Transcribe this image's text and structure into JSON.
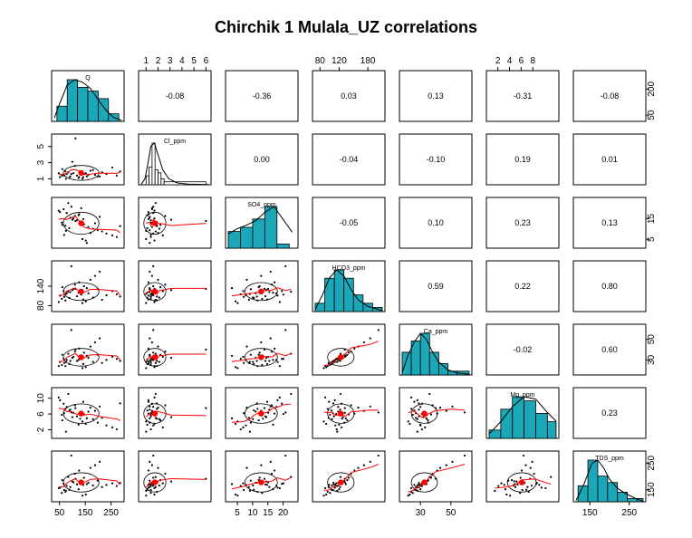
{
  "chart_data": {
    "type": "scatter",
    "title": "Chirchik 1 Mulala_UZ correlations",
    "variables": [
      "Q",
      "Cl_ppm",
      "SO4_ppm",
      "HCO3_ppm",
      "Ca_ppm",
      "Mg_ppm",
      "TDS_ppm"
    ],
    "ranges": [
      [
        30,
        290
      ],
      [
        0.6,
        6.2
      ],
      [
        2,
        24
      ],
      [
        70,
        210
      ],
      [
        18,
        62
      ],
      [
        0.5,
        12
      ],
      [
        115,
        285
      ]
    ],
    "top_axis": {
      "1": {
        "ticks": [
          "1",
          "2",
          "3",
          "4",
          "5",
          "6"
        ],
        "values": [
          1,
          2,
          3,
          4,
          5,
          6
        ]
      },
      "3": {
        "ticks": [
          "80",
          "120",
          "180"
        ],
        "values": [
          80,
          120,
          180
        ]
      },
      "5": {
        "ticks": [
          "2",
          "4",
          "6",
          "8"
        ],
        "values": [
          2,
          4,
          6,
          8
        ]
      }
    },
    "bottom_axis": {
      "0": {
        "ticks": [
          "50",
          "150",
          "250"
        ],
        "values": [
          50,
          150,
          250
        ]
      },
      "2": {
        "ticks": [
          "5",
          "10",
          "15",
          "20"
        ],
        "values": [
          5,
          10,
          15,
          20
        ]
      },
      "4": {
        "ticks": [
          "30",
          "50"
        ],
        "values": [
          30,
          50
        ]
      },
      "6": {
        "ticks": [
          "150",
          "250"
        ],
        "values": [
          150,
          250
        ]
      }
    },
    "left_axis": {
      "1": {
        "ticks": [
          "1",
          "3",
          "5"
        ],
        "values": [
          1,
          3,
          5
        ]
      },
      "3": {
        "ticks": [
          "80",
          "140"
        ],
        "values": [
          80,
          140
        ]
      },
      "5": {
        "ticks": [
          "2",
          "6",
          "10"
        ],
        "values": [
          2,
          6,
          10
        ]
      }
    },
    "right_axis": {
      "0": {
        "ticks": [
          "50",
          "200"
        ],
        "values": [
          50,
          200
        ]
      },
      "2": {
        "ticks": [
          "5",
          "15"
        ],
        "values": [
          5,
          15
        ]
      },
      "4": {
        "ticks": [
          "30",
          "50"
        ],
        "values": [
          30,
          50
        ]
      },
      "6": {
        "ticks": [
          "150",
          "250"
        ],
        "values": [
          150,
          250
        ]
      }
    },
    "correlations": [
      {
        "row": 0,
        "col": 1,
        "label": "-0.08"
      },
      {
        "row": 0,
        "col": 2,
        "label": "-0.36"
      },
      {
        "row": 0,
        "col": 3,
        "label": "0.03"
      },
      {
        "row": 0,
        "col": 4,
        "label": "0.13"
      },
      {
        "row": 0,
        "col": 5,
        "label": "-0.31"
      },
      {
        "row": 0,
        "col": 6,
        "label": "-0.08"
      },
      {
        "row": 1,
        "col": 2,
        "label": "0.00"
      },
      {
        "row": 1,
        "col": 3,
        "label": "-0.04"
      },
      {
        "row": 1,
        "col": 4,
        "label": "-0.10"
      },
      {
        "row": 1,
        "col": 5,
        "label": "0.19"
      },
      {
        "row": 1,
        "col": 6,
        "label": "0.01"
      },
      {
        "row": 2,
        "col": 3,
        "label": "-0.05"
      },
      {
        "row": 2,
        "col": 4,
        "label": "0.10"
      },
      {
        "row": 2,
        "col": 5,
        "label": "0.23"
      },
      {
        "row": 2,
        "col": 6,
        "label": "0.13"
      },
      {
        "row": 3,
        "col": 4,
        "label": "0.59"
      },
      {
        "row": 3,
        "col": 5,
        "label": "0.22"
      },
      {
        "row": 3,
        "col": 6,
        "label": "0.80"
      },
      {
        "row": 4,
        "col": 5,
        "label": "-0.02"
      },
      {
        "row": 4,
        "col": 6,
        "label": "0.60"
      },
      {
        "row": 5,
        "col": 6,
        "label": "0.23"
      }
    ],
    "histograms": [
      {
        "bins": [
          40,
          80,
          120,
          160,
          200,
          240,
          280
        ],
        "counts": [
          4,
          11,
          9,
          8,
          6,
          2
        ],
        "density_x": [
          30,
          50,
          80,
          110,
          140,
          170,
          200,
          230,
          260,
          290
        ],
        "density_y": [
          0.8,
          4,
          8.4,
          9.6,
          9.0,
          7.6,
          5.0,
          2.6,
          0.9,
          0.3
        ]
      },
      {
        "bins": [
          1,
          1.25,
          1.5,
          1.75,
          2,
          2.25,
          2.5,
          6
        ],
        "counts": [
          3,
          6,
          14,
          5,
          4,
          2,
          1
        ],
        "density_x": [
          0.6,
          0.9,
          1.1,
          1.4,
          1.7,
          2.0,
          2.4,
          2.9,
          3.6,
          4.5,
          6.2
        ],
        "density_y": [
          0.2,
          2,
          6,
          13,
          14,
          10,
          5,
          2,
          0.6,
          0.2,
          0.1
        ]
      },
      {
        "bins": [
          2,
          6,
          10,
          14,
          18,
          22
        ],
        "counts": [
          4,
          5,
          7,
          10,
          1
        ],
        "density_x": [
          2,
          5,
          8,
          11,
          14,
          17,
          20,
          23
        ],
        "density_y": [
          3.2,
          4.4,
          5.2,
          6.2,
          8.1,
          9.4,
          6.5,
          3.6
        ]
      },
      {
        "bins": [
          70,
          90,
          110,
          130,
          150,
          170,
          190,
          210
        ],
        "counts": [
          2,
          8,
          10,
          8,
          4,
          2,
          1
        ],
        "density_x": [
          70,
          85,
          100,
          115,
          130,
          145,
          160,
          180,
          210
        ],
        "density_y": [
          0.5,
          3.8,
          7.8,
          9.6,
          8.2,
          5.1,
          2.7,
          1.2,
          0.2
        ]
      },
      {
        "bins": [
          18,
          24,
          30,
          36,
          42,
          48,
          54,
          62
        ],
        "counts": [
          6,
          9,
          11,
          6,
          3,
          1,
          1
        ],
        "density_x": [
          18,
          22,
          26,
          30,
          34,
          38,
          42,
          48,
          54,
          62
        ],
        "density_y": [
          0.6,
          5.5,
          9.0,
          11.3,
          9.6,
          6.2,
          3.5,
          1.4,
          0.6,
          0.2
        ]
      },
      {
        "bins": [
          0.5,
          2.5,
          4.5,
          6.5,
          8.5,
          10.5,
          12
        ],
        "counts": [
          2,
          7,
          10,
          9,
          6,
          4
        ],
        "density_x": [
          0.5,
          2.5,
          4.5,
          6.5,
          8.5,
          10.5,
          12
        ],
        "density_y": [
          0.9,
          3.5,
          6.6,
          8.7,
          8.2,
          5.4,
          3.6
        ]
      },
      {
        "bins": [
          120,
          145,
          170,
          195,
          220,
          245,
          270,
          285
        ],
        "counts": [
          5,
          13,
          8,
          6,
          3,
          1,
          1
        ],
        "density_x": [
          115,
          135,
          155,
          170,
          185,
          200,
          220,
          245,
          270,
          285
        ],
        "density_y": [
          0.4,
          5.6,
          12.2,
          13.3,
          10.8,
          7.2,
          4.3,
          2.3,
          0.8,
          0.2
        ]
      }
    ],
    "observations": [
      [
        92,
        1.3,
        15.5,
        122,
        29,
        7.1,
        160
      ],
      [
        78,
        1.6,
        17.8,
        118,
        30,
        7.8,
        165
      ],
      [
        66,
        1.5,
        19.6,
        125,
        31,
        8.6,
        172
      ],
      [
        52,
        1.2,
        18.2,
        111,
        28,
        9.5,
        158
      ],
      [
        104,
        1.7,
        15.1,
        132,
        33,
        6.3,
        178
      ],
      [
        118,
        1.4,
        14.2,
        109,
        29,
        5.4,
        170
      ],
      [
        130,
        1.9,
        13.4,
        126,
        34,
        4.8,
        182
      ],
      [
        145,
        1.6,
        12.3,
        140,
        37,
        5.9,
        195
      ],
      [
        162,
        1.5,
        11.0,
        118,
        32,
        6.6,
        176
      ],
      [
        180,
        2.1,
        10.1,
        105,
        28,
        4.7,
        166
      ],
      [
        198,
        1.3,
        9.4,
        131,
        35,
        3.8,
        184
      ],
      [
        215,
        1.8,
        8.8,
        98,
        27,
        5.0,
        160
      ],
      [
        232,
        1.6,
        7.8,
        112,
        30,
        3.1,
        168
      ],
      [
        255,
        2.4,
        6.9,
        125,
        33,
        2.6,
        174
      ],
      [
        272,
        1.4,
        6.1,
        115,
        31,
        2.1,
        164
      ],
      [
        88,
        1.1,
        10.4,
        104,
        26,
        6.9,
        150
      ],
      [
        73,
        1.9,
        11.6,
        96,
        24,
        7.3,
        142
      ],
      [
        59,
        1.4,
        13.1,
        101,
        25,
        5.8,
        138
      ],
      [
        110,
        2.6,
        16.3,
        145,
        38,
        8.2,
        210
      ],
      [
        126,
        1.2,
        17.2,
        152,
        41,
        6.1,
        222
      ],
      [
        139,
        1.0,
        5.1,
        88,
        22,
        4.1,
        128
      ],
      [
        152,
        1.7,
        4.4,
        93,
        23,
        3.5,
        132
      ],
      [
        170,
        2.0,
        8.1,
        160,
        43,
        7.6,
        232
      ],
      [
        188,
        1.5,
        12.8,
        172,
        47,
        6.8,
        242
      ],
      [
        206,
        1.3,
        15.9,
        185,
        51,
        7.9,
        255
      ],
      [
        96,
        1.6,
        20.8,
        202,
        59,
        6.4,
        278
      ],
      [
        84,
        1.8,
        22.6,
        123,
        36,
        11.1,
        198
      ],
      [
        112,
        6.0,
        13.9,
        132,
        40,
        7.5,
        191
      ],
      [
        75,
        1.0,
        9.1,
        116,
        28,
        1.5,
        146
      ],
      [
        142,
        1.2,
        14.8,
        99,
        26,
        9.1,
        168
      ],
      [
        61,
        2.2,
        12.0,
        137,
        35,
        4.4,
        186
      ],
      [
        124,
        1.1,
        16.7,
        120,
        30,
        3.3,
        152
      ],
      [
        285,
        1.9,
        11.4,
        108,
        29,
        8.7,
        176
      ],
      [
        100,
        3.1,
        14.5,
        128,
        32,
        5.2,
        181
      ],
      [
        47,
        1.7,
        18.9,
        91,
        24,
        10.2,
        156
      ],
      [
        134,
        1.5,
        20.1,
        114,
        31,
        6.0,
        174
      ],
      [
        156,
        1.3,
        3.2,
        134,
        34,
        4.9,
        171
      ],
      [
        68,
        1.4,
        7.1,
        107,
        27,
        6.2,
        149
      ]
    ],
    "lowess": {
      "0": {
        "x": [
          40,
          90,
          140,
          190,
          240,
          290
        ],
        "y": [
          1.25,
          1.45,
          1.55,
          1.6,
          1.75,
          2.1
        ]
      },
      "2": {
        "x": [
          2,
          8,
          14,
          20,
          24
        ],
        "y": [
          1.5,
          1.55,
          1.55,
          1.55,
          1.55
        ]
      },
      "1": {
        "x": [
          0.7,
          1.2,
          1.6,
          2.2,
          3.5,
          6.2
        ],
        "y": [
          17.5,
          14.5,
          13.5,
          13.5,
          13.5,
          13.8
        ]
      },
      "rows": "pairwise-smooth"
    },
    "ellipse_note": "",
    "xlabel": "",
    "ylabel": ""
  }
}
